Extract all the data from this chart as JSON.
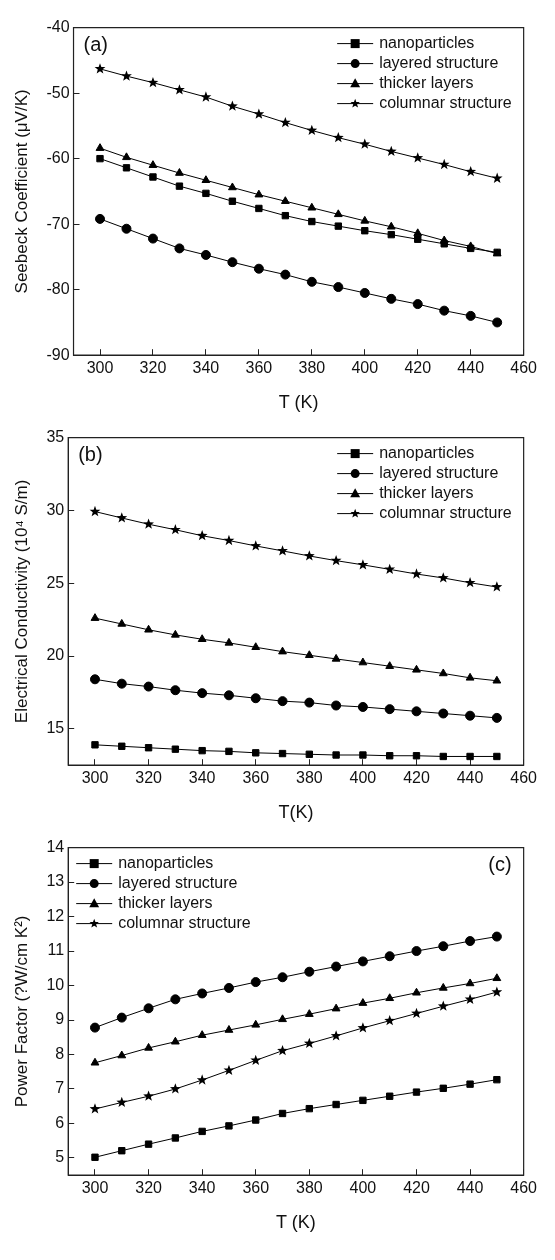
{
  "chart_data": [
    {
      "type": "line",
      "xlabel": "T (K)",
      "ylabel": "Seebeck Coefficient (μV/K)",
      "annotations": [
        "(a)"
      ],
      "legend": "top right",
      "grid": false,
      "line_style": "solid",
      "x": [
        300,
        310,
        320,
        330,
        340,
        350,
        360,
        370,
        380,
        390,
        400,
        410,
        420,
        430,
        440,
        450
      ],
      "xlim": [
        290,
        460
      ],
      "xticks": [
        300,
        320,
        340,
        360,
        380,
        400,
        420,
        440,
        460
      ],
      "ylim": [
        -90,
        -40
      ],
      "yticks": [
        -90,
        -80,
        -70,
        -60,
        -50,
        -40
      ],
      "series": [
        {
          "name": "nanoparticles",
          "color": "#000000",
          "marker": "square",
          "values": [
            -60.0,
            -61.4,
            -62.8,
            -64.2,
            -65.3,
            -66.5,
            -67.6,
            -68.7,
            -69.6,
            -70.3,
            -71.0,
            -71.6,
            -72.3,
            -73.0,
            -73.7,
            -74.3
          ]
        },
        {
          "name": "layered structure",
          "color": "#000000",
          "marker": "circle",
          "values": [
            -69.2,
            -70.7,
            -72.2,
            -73.7,
            -74.7,
            -75.8,
            -76.8,
            -77.7,
            -78.8,
            -79.6,
            -80.5,
            -81.4,
            -82.2,
            -83.2,
            -84.0,
            -85.0
          ]
        },
        {
          "name": "thicker layers",
          "color": "#000000",
          "marker": "triangle",
          "values": [
            -58.4,
            -59.8,
            -61.0,
            -62.2,
            -63.3,
            -64.4,
            -65.5,
            -66.5,
            -67.5,
            -68.5,
            -69.5,
            -70.4,
            -71.4,
            -72.5,
            -73.4,
            -74.5
          ]
        },
        {
          "name": "columnar structure",
          "color": "#000000",
          "marker": "star",
          "values": [
            -46.3,
            -47.4,
            -48.4,
            -49.5,
            -50.6,
            -52.0,
            -53.2,
            -54.5,
            -55.7,
            -56.8,
            -57.8,
            -58.9,
            -59.9,
            -60.9,
            -62.0,
            -63.0
          ]
        }
      ]
    },
    {
      "type": "line",
      "xlabel": "T(K)",
      "ylabel": "Electrical Conductivity (10⁴ S/m)",
      "annotations": [
        "(b)"
      ],
      "legend": "top right",
      "grid": false,
      "line_style": "solid",
      "x": [
        300,
        310,
        320,
        330,
        340,
        350,
        360,
        370,
        380,
        390,
        400,
        410,
        420,
        430,
        440,
        450
      ],
      "xlim": [
        290,
        460
      ],
      "xticks": [
        300,
        320,
        340,
        360,
        380,
        400,
        420,
        440,
        460
      ],
      "ylim": [
        12.5,
        35
      ],
      "yticks": [
        15,
        20,
        25,
        30,
        35
      ],
      "series": [
        {
          "name": "nanoparticles",
          "color": "#000000",
          "marker": "square",
          "values": [
            13.9,
            13.8,
            13.7,
            13.6,
            13.5,
            13.45,
            13.35,
            13.3,
            13.25,
            13.2,
            13.2,
            13.15,
            13.15,
            13.1,
            13.1,
            13.1
          ]
        },
        {
          "name": "layered structure",
          "color": "#000000",
          "marker": "circle",
          "values": [
            18.4,
            18.1,
            17.9,
            17.65,
            17.45,
            17.3,
            17.1,
            16.9,
            16.8,
            16.6,
            16.5,
            16.35,
            16.2,
            16.05,
            15.9,
            15.75
          ]
        },
        {
          "name": "thicker layers",
          "color": "#000000",
          "marker": "triangle",
          "values": [
            22.6,
            22.2,
            21.8,
            21.45,
            21.15,
            20.9,
            20.6,
            20.3,
            20.05,
            19.8,
            19.55,
            19.3,
            19.05,
            18.8,
            18.5,
            18.3
          ]
        },
        {
          "name": "columnar structure",
          "color": "#000000",
          "marker": "star",
          "values": [
            29.92,
            29.48,
            29.05,
            28.67,
            28.26,
            27.93,
            27.56,
            27.22,
            26.87,
            26.55,
            26.26,
            25.95,
            25.63,
            25.36,
            25.03,
            24.74
          ]
        }
      ]
    },
    {
      "type": "line",
      "xlabel": "T (K)",
      "ylabel": "Power Factor (?W/cm K²)",
      "annotations": [
        "(c)"
      ],
      "legend": "top left",
      "grid": false,
      "line_style": "solid",
      "x": [
        300,
        310,
        320,
        330,
        340,
        350,
        360,
        370,
        380,
        390,
        400,
        410,
        420,
        430,
        440,
        450
      ],
      "xlim": [
        290,
        460
      ],
      "xticks": [
        300,
        320,
        340,
        360,
        380,
        400,
        420,
        440,
        460
      ],
      "ylim": [
        4.5,
        14
      ],
      "yticks": [
        5,
        6,
        7,
        8,
        9,
        10,
        11,
        12,
        13,
        14
      ],
      "series": [
        {
          "name": "nanoparticles",
          "color": "#000000",
          "marker": "square",
          "values": [
            5.02,
            5.21,
            5.4,
            5.58,
            5.77,
            5.93,
            6.1,
            6.29,
            6.43,
            6.55,
            6.67,
            6.79,
            6.91,
            7.02,
            7.14,
            7.27
          ]
        },
        {
          "name": "layered structure",
          "color": "#000000",
          "marker": "circle",
          "values": [
            8.78,
            9.07,
            9.34,
            9.6,
            9.77,
            9.93,
            10.1,
            10.24,
            10.4,
            10.55,
            10.7,
            10.85,
            11.0,
            11.14,
            11.29,
            11.42
          ]
        },
        {
          "name": "thicker layers",
          "color": "#000000",
          "marker": "triangle",
          "values": [
            7.76,
            7.97,
            8.19,
            8.37,
            8.56,
            8.71,
            8.86,
            9.02,
            9.17,
            9.33,
            9.49,
            9.63,
            9.79,
            9.93,
            10.06,
            10.21
          ]
        },
        {
          "name": "columnar structure",
          "color": "#000000",
          "marker": "star",
          "values": [
            6.42,
            6.61,
            6.79,
            7.0,
            7.26,
            7.54,
            7.83,
            8.11,
            8.32,
            8.54,
            8.77,
            8.98,
            9.19,
            9.4,
            9.6,
            9.81
          ]
        }
      ]
    }
  ]
}
